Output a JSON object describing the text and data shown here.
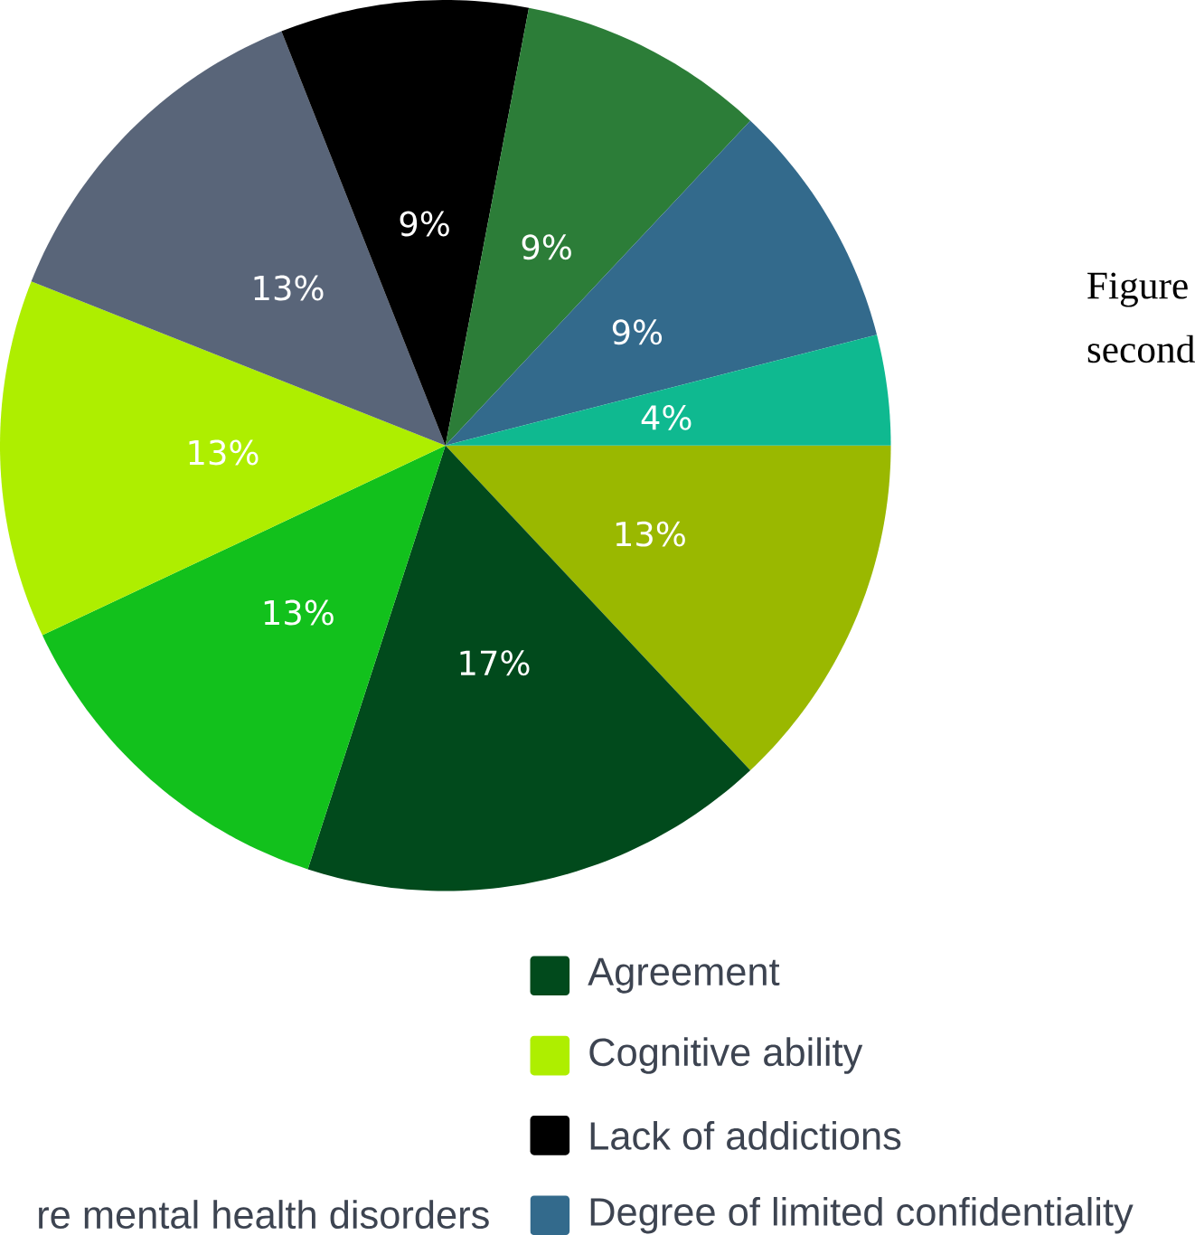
{
  "chart_data": {
    "type": "pie",
    "categories": [
      null,
      "Agreement",
      null,
      "Cognitive ability",
      null,
      "Lack of addictions",
      null,
      "Degree of limited confidentiality",
      null
    ],
    "values": [
      13,
      17,
      13,
      13,
      13,
      9,
      9,
      9,
      4
    ],
    "colors": [
      "#9ab800",
      "#014a1c",
      "#12c11c",
      "#aeee00",
      "#596579",
      "#000000",
      "#2c7d38",
      "#336a8c",
      "#0fb990"
    ],
    "value_labels": [
      "13%",
      "17%",
      "13%",
      "13%",
      "13%",
      "9%",
      "9%",
      "9%",
      "4%"
    ],
    "legend": "bottom",
    "annotations": [
      "re mental health disorders",
      "Figure",
      "second"
    ]
  }
}
